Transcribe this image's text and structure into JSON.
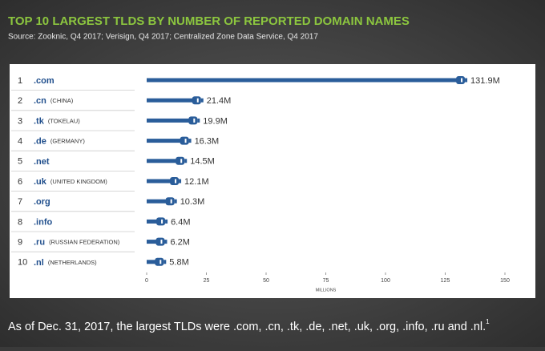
{
  "chart_data": {
    "type": "bar",
    "title": "TOP 10 LARGEST TLDS BY NUMBER OF REPORTED DOMAIN NAMES",
    "subtitle": "Source: Zooknic, Q4 2017; Verisign, Q4 2017; Centralized Zone Data Service, Q4 2017",
    "ranks": [
      1,
      2,
      3,
      4,
      5,
      6,
      7,
      8,
      9,
      10
    ],
    "categories": [
      ".com",
      ".cn",
      ".tk",
      ".de",
      ".net",
      ".uk",
      ".org",
      ".info",
      ".ru",
      ".nl"
    ],
    "countries": [
      null,
      "(CHINA)",
      "(TOKELAU)",
      "(GERMANY)",
      null,
      "(UNITED KINGDOM)",
      null,
      null,
      "(RUSSIAN FEDERATION)",
      "(NETHERLANDS)"
    ],
    "values": [
      131.9,
      21.4,
      19.9,
      16.3,
      14.5,
      12.1,
      10.3,
      6.4,
      6.2,
      5.8
    ],
    "value_labels": [
      "131.9M",
      "21.4M",
      "19.9M",
      "16.3M",
      "14.5M",
      "12.1M",
      "10.3M",
      "6.4M",
      "6.2M",
      "5.8M"
    ],
    "color": "#2a5d9a",
    "xlim": [
      0,
      150
    ],
    "xticks": [
      0,
      25,
      50,
      75,
      100,
      125,
      150
    ],
    "xlabel": "MILLIONS",
    "caption": "As of Dec. 31, 2017, the largest TLDs were .com, .cn, .tk, .de, .net, .uk, .org, .info, .ru and .nl.",
    "caption_ref": "1"
  }
}
